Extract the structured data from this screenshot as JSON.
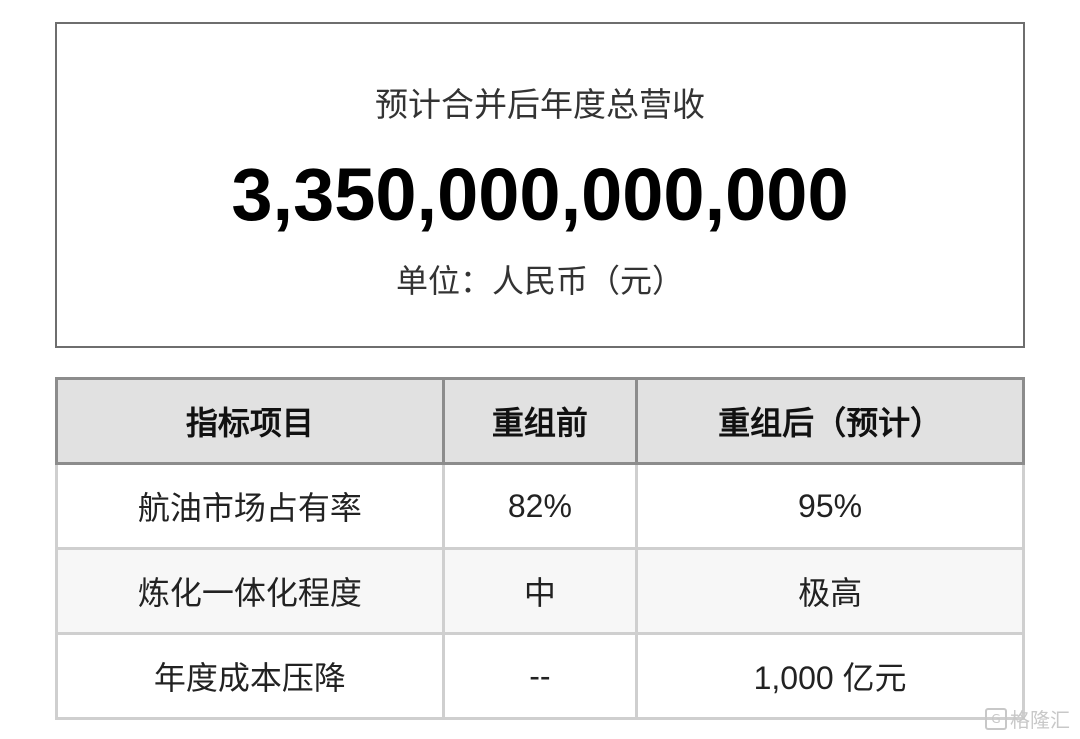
{
  "summary": {
    "title": "预计合并后年度总营收",
    "value": "3,350,000,000,000",
    "unit": "单位：人民币（元）"
  },
  "table": {
    "headers": [
      "指标项目",
      "重组前",
      "重组后（预计）"
    ],
    "rows": [
      [
        "航油市场占有率",
        "82%",
        "95%"
      ],
      [
        "炼化一体化程度",
        "中",
        "极高"
      ],
      [
        "年度成本压降",
        "--",
        "1,000 亿元"
      ]
    ]
  },
  "watermark": {
    "text": "格隆汇",
    "icon": "gelonghui-logo-icon"
  }
}
